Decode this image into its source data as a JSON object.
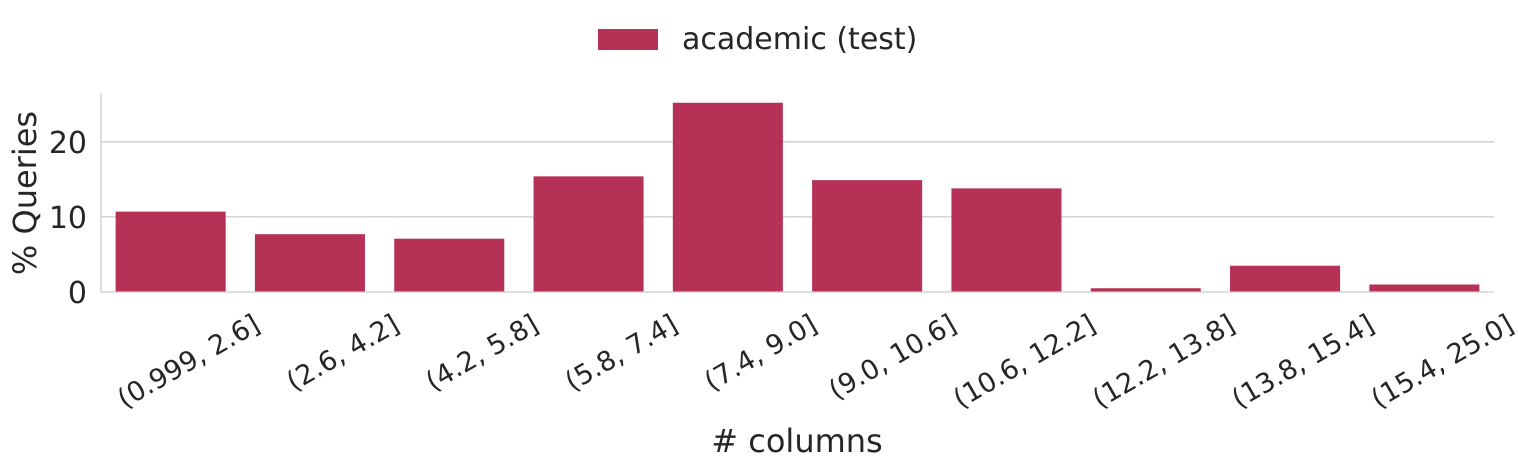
{
  "chart_data": {
    "type": "bar",
    "categories": [
      "(0.999, 2.6]",
      "(2.6, 4.2]",
      "(4.2, 5.8]",
      "(5.8, 7.4]",
      "(7.4, 9.0]",
      "(9.0, 10.6]",
      "(10.6, 12.2]",
      "(12.2, 13.8]",
      "(13.8, 15.4]",
      "(15.4, 25.0]"
    ],
    "series": [
      {
        "name": "academic (test)",
        "values": [
          10.7,
          7.7,
          7.1,
          15.4,
          25.2,
          14.9,
          13.8,
          0.5,
          3.5,
          1.0
        ],
        "color": "#b53156"
      }
    ],
    "xlabel": "# columns",
    "ylabel": "% Queries",
    "yticks": [
      0,
      10,
      20
    ],
    "ylim": [
      0,
      26.5
    ],
    "grid": "horizontal",
    "legend": "top-center"
  }
}
